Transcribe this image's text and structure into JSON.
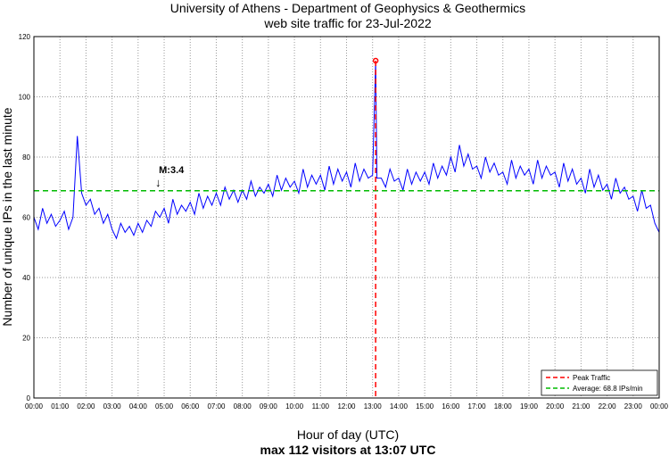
{
  "chart_data": {
    "type": "line",
    "title": "University of Athens - Department of Geophysics & Geothermics",
    "subtitle": "web site traffic for 23-Jul-2022",
    "xlabel": "Hour of day (UTC)",
    "xlabel2": "max 112 visitors at 13:07 UTC",
    "ylabel": "Number of unique IPs in the last minute",
    "ylim": [
      0,
      120
    ],
    "xlim_minutes": [
      0,
      1440
    ],
    "yticks": [
      0,
      20,
      40,
      60,
      80,
      100,
      120
    ],
    "xticks": [
      "00:00",
      "01:00",
      "02:00",
      "03:00",
      "04:00",
      "05:00",
      "06:00",
      "07:00",
      "08:00",
      "09:00",
      "10:00",
      "11:00",
      "12:00",
      "13:00",
      "14:00",
      "15:00",
      "16:00",
      "17:00",
      "18:00",
      "19:00",
      "20:00",
      "21:00",
      "22:00",
      "23:00",
      "00:00"
    ],
    "grid": true,
    "series": [
      {
        "name": "Traffic",
        "color": "#0000ff",
        "x_step_minutes": 10,
        "values": [
          60,
          56,
          63,
          58,
          61,
          57,
          59,
          62,
          56,
          60,
          87,
          68,
          64,
          66,
          61,
          63,
          58,
          61,
          56,
          53,
          58,
          55,
          57,
          54,
          58,
          55,
          59,
          57,
          62,
          60,
          63,
          58,
          66,
          61,
          64,
          62,
          65,
          61,
          68,
          63,
          67,
          64,
          68,
          64,
          70,
          66,
          69,
          65,
          69,
          66,
          72,
          67,
          70,
          68,
          71,
          67,
          74,
          69,
          73,
          70,
          72,
          68,
          76,
          70,
          74,
          71,
          74,
          69,
          77,
          71,
          76,
          72,
          75,
          70,
          78,
          72,
          76,
          73,
          74,
          73,
          73,
          70,
          76,
          72,
          73,
          69,
          76,
          71,
          75,
          72,
          75,
          71,
          78,
          73,
          77,
          74,
          80,
          75,
          84,
          77,
          81,
          76,
          77,
          73,
          80,
          75,
          78,
          74,
          75,
          71,
          79,
          73,
          77,
          74,
          76,
          71,
          79,
          73,
          77,
          74,
          75,
          70,
          78,
          72,
          76,
          71,
          73,
          68,
          76,
          70,
          74,
          69,
          71,
          66,
          73,
          68,
          70,
          66,
          67,
          62,
          69,
          63,
          64,
          58,
          55
        ]
      }
    ],
    "peak": {
      "minute": 787,
      "value": 112,
      "label": "Peak Traffic",
      "color": "#ff0000"
    },
    "average": {
      "value": 68.8,
      "label": "Average: 68.8 IPs/min",
      "color": "#00bb00"
    },
    "annotation": {
      "text": "M:3.4",
      "minute": 288,
      "value": 70
    },
    "legend_placement": "bottom-right"
  }
}
